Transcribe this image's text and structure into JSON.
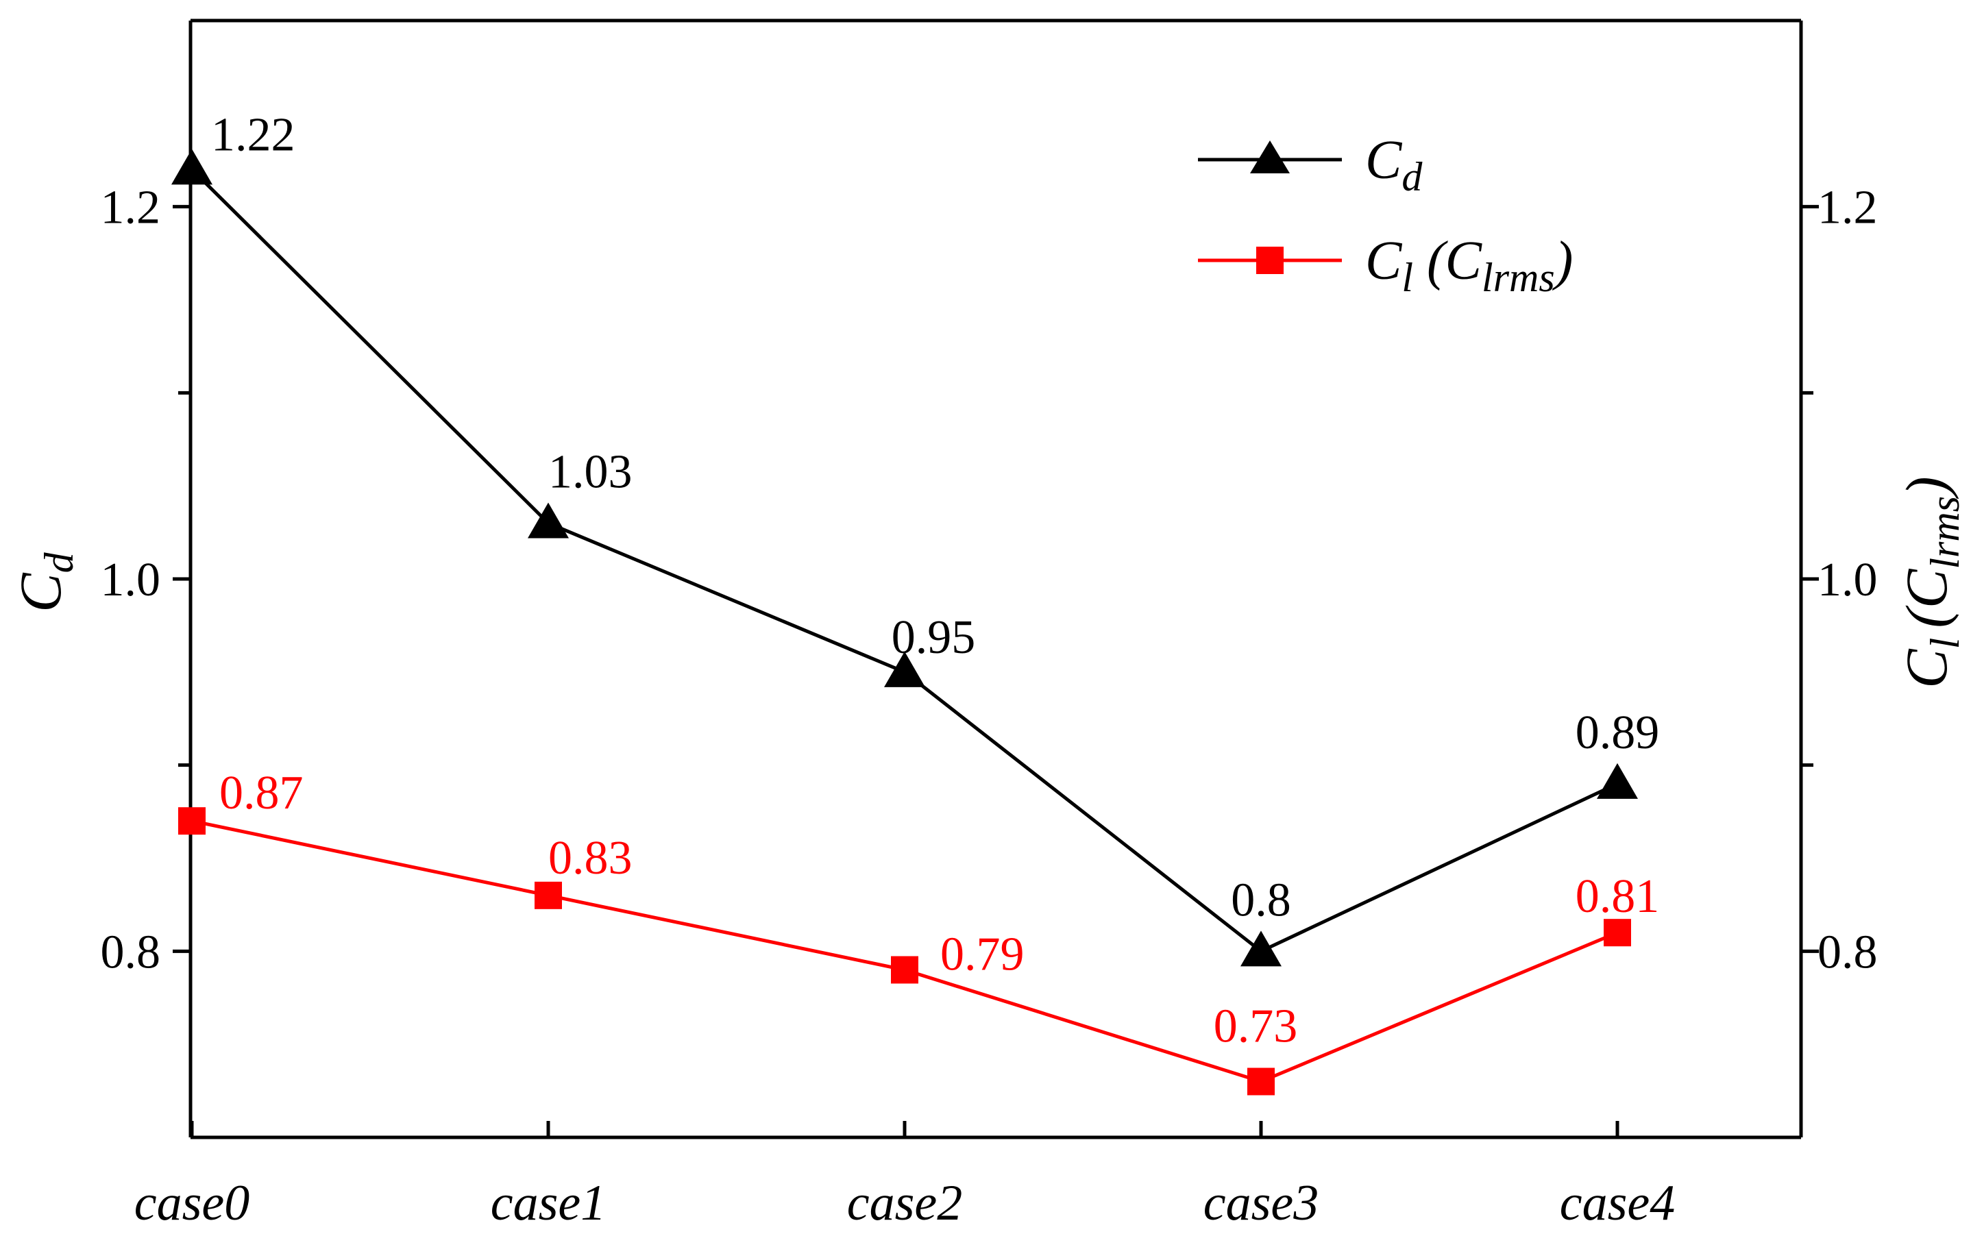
{
  "chart_data": {
    "type": "line",
    "categories": [
      "case0",
      "case1",
      "case2",
      "case3",
      "case4"
    ],
    "series": [
      {
        "name": "Cd",
        "axis": "left",
        "color": "#000000",
        "marker": "triangle",
        "values": [
          1.22,
          1.03,
          0.95,
          0.8,
          0.89
        ],
        "labels": [
          "1.22",
          "1.03",
          "0.95",
          "0.8",
          "0.89"
        ]
      },
      {
        "name": "Cl (Clrms)",
        "axis": "right",
        "color": "#ff0000",
        "marker": "square",
        "values": [
          0.87,
          0.83,
          0.79,
          0.73,
          0.81
        ],
        "labels": [
          "0.87",
          "0.83",
          "0.79",
          "0.73",
          "0.81"
        ]
      }
    ],
    "ylabel_left": {
      "main": "C",
      "sub": "d"
    },
    "ylabel_right": {
      "main": "C",
      "sub": "l",
      "paren_main": "(C",
      "paren_sub": "lrms",
      "paren_close": ")"
    },
    "ylim": [
      0.7,
      1.3
    ],
    "yticks": [
      0.8,
      1.0,
      1.2
    ],
    "ytick_labels": [
      "0.8",
      "1.0",
      "1.2"
    ],
    "legend": {
      "position": "top-right",
      "entries": [
        {
          "main": "C",
          "sub": "d"
        },
        {
          "main": "C",
          "sub": "l",
          "rest_main": " (C",
          "rest_sub": "lrms",
          "rest_close": ")"
        }
      ]
    }
  }
}
